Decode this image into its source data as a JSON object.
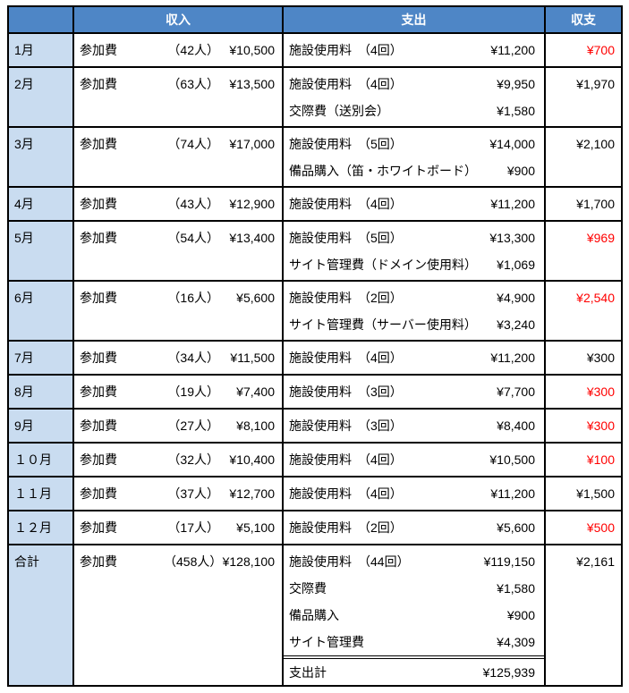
{
  "header": {
    "month": "",
    "income": "収入",
    "expense": "支出",
    "balance": "収支"
  },
  "colors": {
    "header_bg": "#4E86C6",
    "month_bg": "#C9DCF0",
    "negative": "#FF0000",
    "border": "#000000",
    "text": "#000000"
  },
  "rows": [
    {
      "month": "1月",
      "income": {
        "label": "参加費",
        "count": "（42人）",
        "amount": "¥10,500"
      },
      "expenses": [
        {
          "label": "施設使用料　（4回）",
          "amount": "¥11,200"
        }
      ],
      "balance": "¥700",
      "negative": true
    },
    {
      "month": "2月",
      "income": {
        "label": "参加費",
        "count": "（63人）",
        "amount": "¥13,500"
      },
      "expenses": [
        {
          "label": "施設使用料　（4回）",
          "amount": "¥9,950"
        },
        {
          "label": "交際費（送別会）",
          "amount": "¥1,580"
        }
      ],
      "balance": "¥1,970",
      "negative": false
    },
    {
      "month": "3月",
      "income": {
        "label": "参加費",
        "count": "（74人）",
        "amount": "¥17,000"
      },
      "expenses": [
        {
          "label": "施設使用料　（5回）",
          "amount": "¥14,000"
        },
        {
          "label": "備品購入（笛・ホワイトボード）",
          "amount": "¥900"
        }
      ],
      "balance": "¥2,100",
      "negative": false
    },
    {
      "month": "4月",
      "income": {
        "label": "参加費",
        "count": "（43人）",
        "amount": "¥12,900"
      },
      "expenses": [
        {
          "label": "施設使用料　（4回）",
          "amount": "¥11,200"
        }
      ],
      "balance": "¥1,700",
      "negative": false
    },
    {
      "month": "5月",
      "income": {
        "label": "参加費",
        "count": "（54人）",
        "amount": "¥13,400"
      },
      "expenses": [
        {
          "label": "施設使用料　（5回）",
          "amount": "¥13,300"
        },
        {
          "label": "サイト管理費（ドメイン使用料）",
          "amount": "¥1,069"
        }
      ],
      "balance": "¥969",
      "negative": true
    },
    {
      "month": "6月",
      "income": {
        "label": "参加費",
        "count": "（16人）",
        "amount": "¥5,600"
      },
      "expenses": [
        {
          "label": "施設使用料　（2回）",
          "amount": "¥4,900"
        },
        {
          "label": "サイト管理費（サーバー使用料）",
          "amount": "¥3,240"
        }
      ],
      "balance": "¥2,540",
      "negative": true
    },
    {
      "month": "7月",
      "income": {
        "label": "参加費",
        "count": "（34人）",
        "amount": "¥11,500"
      },
      "expenses": [
        {
          "label": "施設使用料　（4回）",
          "amount": "¥11,200"
        }
      ],
      "balance": "¥300",
      "negative": false
    },
    {
      "month": "8月",
      "income": {
        "label": "参加費",
        "count": "（19人）",
        "amount": "¥7,400"
      },
      "expenses": [
        {
          "label": "施設使用料　（3回）",
          "amount": "¥7,700"
        }
      ],
      "balance": "¥300",
      "negative": true
    },
    {
      "month": "9月",
      "income": {
        "label": "参加費",
        "count": "（27人）",
        "amount": "¥8,100"
      },
      "expenses": [
        {
          "label": "施設使用料　（3回）",
          "amount": "¥8,400"
        }
      ],
      "balance": "¥300",
      "negative": true
    },
    {
      "month": "１０月",
      "income": {
        "label": "参加費",
        "count": "（32人）",
        "amount": "¥10,400"
      },
      "expenses": [
        {
          "label": "施設使用料　（4回）",
          "amount": "¥10,500"
        }
      ],
      "balance": "¥100",
      "negative": true
    },
    {
      "month": "１１月",
      "income": {
        "label": "参加費",
        "count": "（37人）",
        "amount": "¥12,700"
      },
      "expenses": [
        {
          "label": "施設使用料　（4回）",
          "amount": "¥11,200"
        }
      ],
      "balance": "¥1,500",
      "negative": false
    },
    {
      "month": "１２月",
      "income": {
        "label": "参加費",
        "count": "（17人）",
        "amount": "¥5,100"
      },
      "expenses": [
        {
          "label": "施設使用料　（2回）",
          "amount": "¥5,600"
        }
      ],
      "balance": "¥500",
      "negative": true
    },
    {
      "month": "合計",
      "is_total": true,
      "income": {
        "label": "参加費",
        "count": "（458人）",
        "amount": "¥128,100"
      },
      "expenses": [
        {
          "label": "施設使用料　（44回）",
          "amount": "¥119,150"
        },
        {
          "label": "交際費",
          "amount": "¥1,580"
        },
        {
          "label": "備品購入",
          "amount": "¥900"
        },
        {
          "label": "サイト管理費",
          "amount": "¥4,309"
        },
        {
          "label": "支出計",
          "amount": "¥125,939",
          "subtotal_divider": true
        }
      ],
      "balance": "¥2,161",
      "negative": false
    }
  ]
}
